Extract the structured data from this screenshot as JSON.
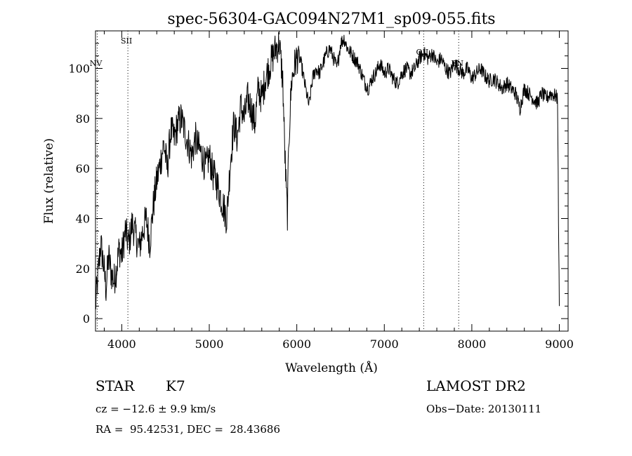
{
  "chart_data": {
    "type": "line",
    "title": "spec-56304-GAC094N27M1_sp09-055.fits",
    "xlabel": "Wavelength (Å)",
    "ylabel": "Flux (relative)",
    "xlim": [
      3700,
      9100
    ],
    "ylim": [
      -5,
      115
    ],
    "xticks": [
      4000,
      5000,
      6000,
      7000,
      8000,
      9000
    ],
    "xtick_labels": [
      "4000",
      "5000",
      "6000",
      "7000",
      "8000",
      "9000"
    ],
    "yticks": [
      0,
      20,
      40,
      60,
      80,
      100
    ],
    "ytick_labels": [
      "0",
      "20",
      "40",
      "60",
      "80",
      "100"
    ],
    "grid": false,
    "line_markers": [
      {
        "label": "NV",
        "x": 3720
      },
      {
        "label": "SII",
        "x": 4070
      },
      {
        "label": "OII",
        "x": 7450
      },
      {
        "label": "BN",
        "x": 7850
      }
    ],
    "series": [
      {
        "x": [
          3700,
          3730,
          3760,
          3790,
          3820,
          3850,
          3880,
          3910,
          3940,
          3970,
          4000,
          4040,
          4080,
          4120,
          4160,
          4200,
          4240,
          4280,
          4320,
          4360,
          4400,
          4440,
          4480,
          4520,
          4560,
          4600,
          4640,
          4680,
          4720,
          4760,
          4800,
          4840,
          4880,
          4920,
          4960,
          5000,
          5040,
          5080,
          5120,
          5160,
          5200,
          5240,
          5280,
          5320,
          5360,
          5400,
          5440,
          5480,
          5520,
          5560,
          5600,
          5640,
          5680,
          5720,
          5760,
          5800,
          5840,
          5860,
          5880,
          5893,
          5910,
          5940,
          5980,
          6020,
          6060,
          6100,
          6140,
          6180,
          6220,
          6260,
          6300,
          6340,
          6380,
          6420,
          6460,
          6500,
          6540,
          6580,
          6620,
          6660,
          6700,
          6740,
          6780,
          6820,
          6860,
          6900,
          6950,
          7000,
          7050,
          7100,
          7150,
          7200,
          7250,
          7300,
          7350,
          7400,
          7450,
          7500,
          7550,
          7600,
          7650,
          7700,
          7750,
          7800,
          7850,
          7900,
          7950,
          8000,
          8050,
          8100,
          8150,
          8200,
          8250,
          8300,
          8350,
          8400,
          8450,
          8500,
          8550,
          8600,
          8650,
          8700,
          8750,
          8800,
          8850,
          8900,
          8950,
          8980,
          8990,
          9000
        ],
        "y": [
          5,
          18,
          30,
          22,
          12,
          25,
          18,
          15,
          20,
          28,
          25,
          35,
          30,
          38,
          33,
          28,
          35,
          40,
          30,
          45,
          55,
          62,
          70,
          60,
          75,
          72,
          78,
          80,
          75,
          70,
          65,
          72,
          68,
          65,
          60,
          65,
          58,
          55,
          50,
          45,
          40,
          62,
          78,
          72,
          85,
          80,
          88,
          84,
          78,
          92,
          88,
          96,
          100,
          104,
          108,
          110,
          95,
          70,
          50,
          42,
          72,
          95,
          102,
          106,
          100,
          92,
          85,
          96,
          100,
          98,
          102,
          106,
          108,
          104,
          100,
          110,
          112,
          108,
          106,
          104,
          102,
          98,
          94,
          92,
          96,
          98,
          102,
          98,
          100,
          96,
          94,
          98,
          100,
          98,
          100,
          104,
          106,
          104,
          106,
          102,
          104,
          100,
          98,
          102,
          100,
          98,
          100,
          96,
          98,
          100,
          97,
          95,
          96,
          94,
          92,
          94,
          92,
          90,
          84,
          92,
          90,
          88,
          86,
          90,
          88,
          90,
          89,
          88,
          40,
          5
        ]
      }
    ]
  },
  "info": {
    "object_class": "STAR",
    "subclass": "K7",
    "survey": "LAMOST DR2",
    "cz": "cz = −12.6 ± 9.9 km/s",
    "obs_date": "Obs−Date: 20130111",
    "coords": "RA =  95.42531, DEC =  28.43686"
  }
}
